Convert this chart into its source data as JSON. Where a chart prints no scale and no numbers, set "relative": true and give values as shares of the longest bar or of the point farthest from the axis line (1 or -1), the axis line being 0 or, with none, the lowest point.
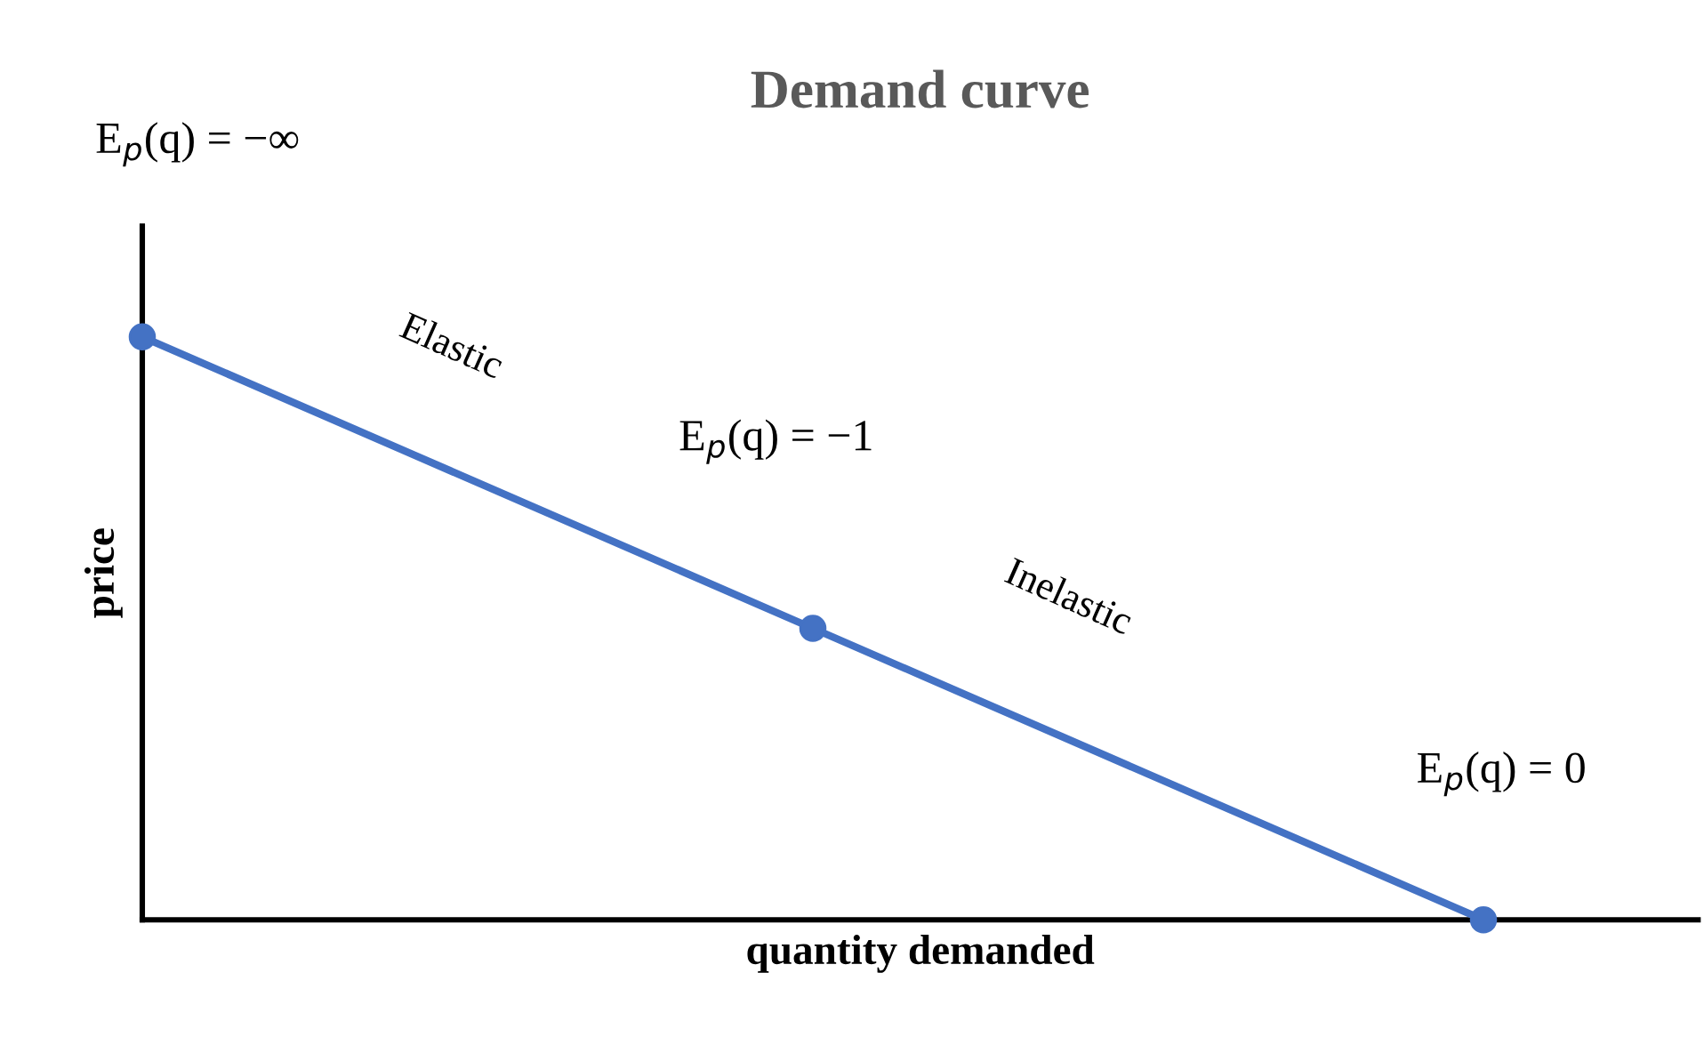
{
  "chart_data": {
    "type": "line",
    "title": "Demand curve",
    "xlabel": "quantity demanded",
    "ylabel": "price",
    "categories": [
      null,
      null,
      null
    ],
    "series": [
      {
        "color": "#4472c4",
        "values": [
          1,
          0.5,
          0
        ]
      }
    ],
    "relative": true,
    "marker": "circle",
    "line_style": "solid",
    "annotations": [
      "E$_{p}$(q) = −∞",
      "Elastic",
      "E$_{p}$(q) = −1",
      "Inelastic",
      "E$_{p}$(q) = 0"
    ]
  }
}
